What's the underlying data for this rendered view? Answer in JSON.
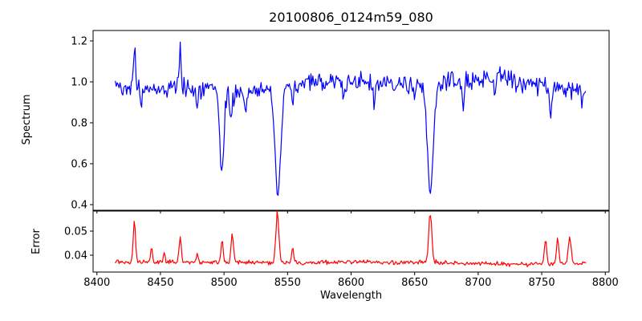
{
  "figure": {
    "background": "#ffffff",
    "axis_color": "#000000"
  },
  "chart_data": {
    "type": "line",
    "title": "20100806_0124m59_080",
    "xlabel": "Wavelength",
    "xlim": [
      8397,
      8803
    ],
    "x_ticks": [
      8400,
      8450,
      8500,
      8550,
      8600,
      8650,
      8700,
      8750,
      8800
    ],
    "x_tick_labels": [
      "8400",
      "8450",
      "8500",
      "8550",
      "8600",
      "8650",
      "8700",
      "8750",
      "8800"
    ],
    "x_data_range": [
      8414.5,
      8785
    ],
    "sample_step": 0.74,
    "noise_seed": 42,
    "panels": [
      {
        "name": "spectrum",
        "ylabel": "Spectrum",
        "line_color": "#0000ff",
        "ylim": [
          0.3725,
          1.251
        ],
        "y_ticks": [
          0.4,
          0.6,
          0.8,
          1.0,
          1.2
        ],
        "y_tick_labels": [
          "0.4",
          "0.6",
          "0.8",
          "1.0",
          "1.2"
        ],
        "noise_rms": 0.023,
        "continuum_points": [
          [
            8414,
            0.985
          ],
          [
            8440,
            0.965
          ],
          [
            8470,
            0.975
          ],
          [
            8490,
            0.96
          ],
          [
            8510,
            0.945
          ],
          [
            8530,
            0.965
          ],
          [
            8555,
            0.985
          ],
          [
            8575,
            1.0
          ],
          [
            8600,
            1.005
          ],
          [
            8615,
            0.995
          ],
          [
            8640,
            0.985
          ],
          [
            8665,
            0.975
          ],
          [
            8680,
            1.0
          ],
          [
            8695,
            1.01
          ],
          [
            8715,
            1.03
          ],
          [
            8735,
            1.0
          ],
          [
            8755,
            0.975
          ],
          [
            8770,
            0.97
          ],
          [
            8785,
            0.965
          ]
        ],
        "absorption_lines": [
          {
            "center": 8498.2,
            "depth": 0.4,
            "sigma": 1.6
          },
          {
            "center": 8542.3,
            "depth": 0.53,
            "sigma": 2.3
          },
          {
            "center": 8662.3,
            "depth": 0.52,
            "sigma": 2.2
          },
          {
            "center": 8435.0,
            "depth": 0.1,
            "sigma": 0.8
          },
          {
            "center": 8479.0,
            "depth": 0.09,
            "sigma": 0.8
          },
          {
            "center": 8505.5,
            "depth": 0.12,
            "sigma": 1.0
          },
          {
            "center": 8517.0,
            "depth": 0.1,
            "sigma": 0.9
          },
          {
            "center": 8554.0,
            "depth": 0.1,
            "sigma": 0.8
          },
          {
            "center": 8594.0,
            "depth": 0.09,
            "sigma": 0.9
          },
          {
            "center": 8618.0,
            "depth": 0.1,
            "sigma": 0.9
          },
          {
            "center": 8650.0,
            "depth": 0.07,
            "sigma": 0.8
          },
          {
            "center": 8688.0,
            "depth": 0.13,
            "sigma": 1.0
          },
          {
            "center": 8713.0,
            "depth": 0.08,
            "sigma": 0.8
          },
          {
            "center": 8757.0,
            "depth": 0.12,
            "sigma": 1.0
          },
          {
            "center": 8782.0,
            "depth": 0.08,
            "sigma": 0.8
          }
        ],
        "emission_lines": [
          {
            "center": 8429.5,
            "height": 0.225,
            "sigma": 0.7
          },
          {
            "center": 8465.5,
            "height": 0.2,
            "sigma": 0.6
          }
        ]
      },
      {
        "name": "error",
        "ylabel": "Error",
        "line_color": "#ff0000",
        "ylim": [
          0.033,
          0.05833
        ],
        "y_ticks": [
          0.04,
          0.05
        ],
        "y_tick_labels": [
          "0.04",
          "0.05"
        ],
        "noise_rms": 0.00045,
        "baseline_points": [
          [
            8414,
            0.0371
          ],
          [
            8460,
            0.0372
          ],
          [
            8520,
            0.037
          ],
          [
            8560,
            0.0369
          ],
          [
            8590,
            0.0372
          ],
          [
            8610,
            0.0373
          ],
          [
            8630,
            0.0368
          ],
          [
            8655,
            0.0372
          ],
          [
            8680,
            0.0366
          ],
          [
            8720,
            0.0363
          ],
          [
            8745,
            0.0363
          ],
          [
            8785,
            0.0367
          ]
        ],
        "spikes": [
          {
            "center": 8429.5,
            "height": 0.0167,
            "sigma": 0.9
          },
          {
            "center": 8443.0,
            "height": 0.006,
            "sigma": 0.7
          },
          {
            "center": 8453.0,
            "height": 0.004,
            "sigma": 0.6
          },
          {
            "center": 8465.5,
            "height": 0.0112,
            "sigma": 0.8
          },
          {
            "center": 8479.0,
            "height": 0.003,
            "sigma": 0.7
          },
          {
            "center": 8498.5,
            "height": 0.0085,
            "sigma": 0.9
          },
          {
            "center": 8506.5,
            "height": 0.0125,
            "sigma": 0.9
          },
          {
            "center": 8542.0,
            "height": 0.0205,
            "sigma": 1.2
          },
          {
            "center": 8554.0,
            "height": 0.0062,
            "sigma": 0.8
          },
          {
            "center": 8662.3,
            "height": 0.0205,
            "sigma": 1.2
          },
          {
            "center": 8753.0,
            "height": 0.0098,
            "sigma": 0.9
          },
          {
            "center": 8762.5,
            "height": 0.0105,
            "sigma": 0.9
          },
          {
            "center": 8772.0,
            "height": 0.011,
            "sigma": 1.1
          }
        ]
      }
    ]
  }
}
